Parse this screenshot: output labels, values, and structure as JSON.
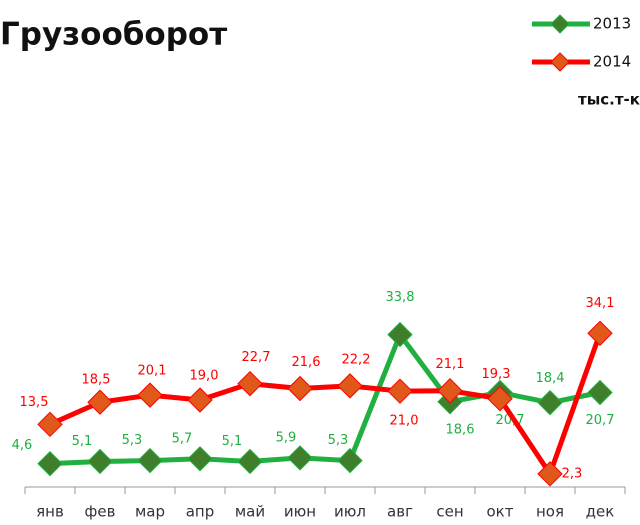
{
  "chart_data": {
    "type": "line",
    "title": "Грузооборот",
    "unit": "тыс.т-км",
    "categories": [
      "янв",
      "фев",
      "мар",
      "апр",
      "май",
      "июн",
      "июл",
      "авг",
      "сен",
      "окт",
      "ноя",
      "дек"
    ],
    "series": [
      {
        "name": "2013",
        "color": "#1fb040",
        "marker_color": "#3f7f2c",
        "values": [
          4.6,
          5.1,
          5.3,
          5.7,
          5.1,
          5.9,
          5.3,
          33.8,
          18.6,
          20.7,
          18.4,
          20.7
        ],
        "value_labels": [
          "4,6",
          "5,1",
          "5,3",
          "5,7",
          "5,1",
          "5,9",
          "5,3",
          "33,8",
          "18,6",
          "20,7",
          "18,4",
          "20,7"
        ]
      },
      {
        "name": "2014",
        "color": "#ff0000",
        "marker_color": "#e0581a",
        "values": [
          13.5,
          18.5,
          20.1,
          19.0,
          22.7,
          21.6,
          22.2,
          21.0,
          21.1,
          19.3,
          2.3,
          34.1
        ],
        "value_labels": [
          "13,5",
          "18,5",
          "20,1",
          "19,0",
          "22,7",
          "21,6",
          "22,2",
          "21,0",
          "21,1",
          "19,3",
          "2,3",
          "34,1"
        ]
      }
    ]
  }
}
